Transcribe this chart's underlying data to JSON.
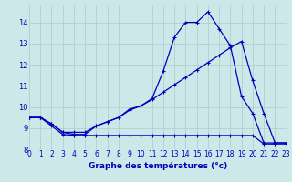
{
  "title": "Graphe des températures (°c)",
  "background_color": "#cce8e8",
  "grid_color": "#aacccc",
  "line_color": "#0000bb",
  "xlim": [
    0,
    23
  ],
  "ylim": [
    8,
    14.8
  ],
  "yticks": [
    8,
    9,
    10,
    11,
    12,
    13,
    14
  ],
  "xticks": [
    0,
    1,
    2,
    3,
    4,
    5,
    6,
    7,
    8,
    9,
    10,
    11,
    12,
    13,
    14,
    15,
    16,
    17,
    18,
    19,
    20,
    21,
    22,
    23
  ],
  "series1_x": [
    0,
    1,
    2,
    3,
    4,
    5,
    6,
    7,
    8,
    9,
    10,
    11,
    12,
    13,
    14,
    15,
    16,
    17,
    18,
    19,
    20,
    21,
    22,
    23
  ],
  "series1_y": [
    9.5,
    9.5,
    9.2,
    8.8,
    8.7,
    8.7,
    9.1,
    9.3,
    9.5,
    9.9,
    10.05,
    10.4,
    11.7,
    13.3,
    14.0,
    14.0,
    14.5,
    13.7,
    12.9,
    10.5,
    9.7,
    8.3,
    8.3,
    8.3
  ],
  "series2_x": [
    0,
    1,
    2,
    3,
    4,
    5,
    6,
    7,
    8,
    9,
    10,
    11,
    12,
    13,
    14,
    15,
    16,
    17,
    18,
    19,
    20,
    21,
    22,
    23
  ],
  "series2_y": [
    9.5,
    9.5,
    9.1,
    8.7,
    8.65,
    8.65,
    8.65,
    8.65,
    8.65,
    8.65,
    8.65,
    8.65,
    8.65,
    8.65,
    8.65,
    8.65,
    8.65,
    8.65,
    8.65,
    8.65,
    8.65,
    8.25,
    8.25,
    8.25
  ],
  "series3_x": [
    0,
    1,
    2,
    3,
    4,
    5,
    6,
    7,
    8,
    9,
    10,
    11,
    12,
    13,
    14,
    15,
    16,
    17,
    18,
    19,
    20,
    21,
    22,
    23
  ],
  "series3_y": [
    9.5,
    9.5,
    9.2,
    8.8,
    8.8,
    8.8,
    9.1,
    9.3,
    9.5,
    9.85,
    10.05,
    10.35,
    10.7,
    11.05,
    11.4,
    11.75,
    12.1,
    12.45,
    12.8,
    13.1,
    11.25,
    9.7,
    8.3,
    8.3
  ]
}
